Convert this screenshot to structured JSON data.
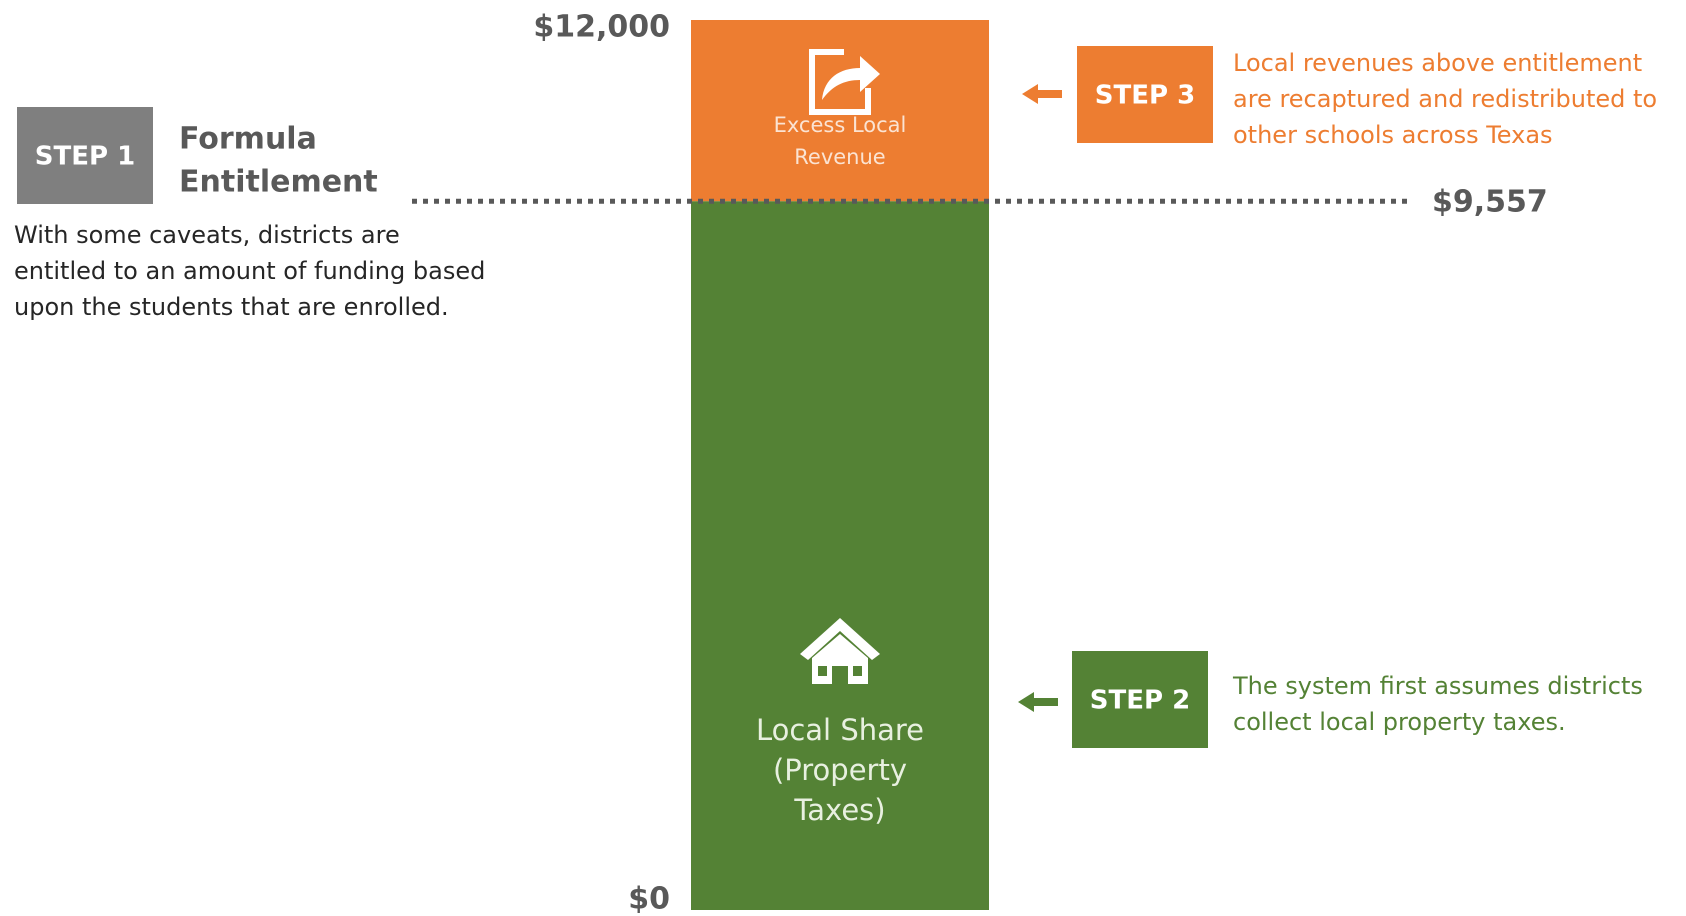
{
  "chart_data": {
    "type": "stacked_bar",
    "ylim": [
      0,
      12000
    ],
    "yticks": [
      {
        "value": 0,
        "label": "$0"
      },
      {
        "value": 12000,
        "label": "$12,000"
      }
    ],
    "series": [
      {
        "label": [
          "Local Share",
          "(Property",
          "Taxes)"
        ],
        "color": "#548235",
        "values": [
          9557
        ]
      },
      {
        "label": [
          "Excess Local",
          "Revenue"
        ],
        "color": "#ed7d31",
        "values": [
          2443
        ]
      }
    ],
    "reference_line": {
      "value": 9557,
      "label": "$9,557"
    },
    "steps": [
      {
        "badge": "STEP 1",
        "title": [
          "Formula",
          "Entitlement"
        ],
        "text": [
          "With some caveats, districts are",
          "entitled to an amount of funding based",
          "upon the students that are enrolled."
        ],
        "color": "#7f7f7f"
      },
      {
        "badge": "STEP 2",
        "text": [
          "The system first assumes districts",
          "collect local property taxes."
        ],
        "color": "#548235"
      },
      {
        "badge": "STEP 3",
        "text": [
          "Local revenues above entitlement",
          "are recaptured and redistributed to",
          "other schools across Texas"
        ],
        "color": "#ed7d31"
      }
    ]
  }
}
